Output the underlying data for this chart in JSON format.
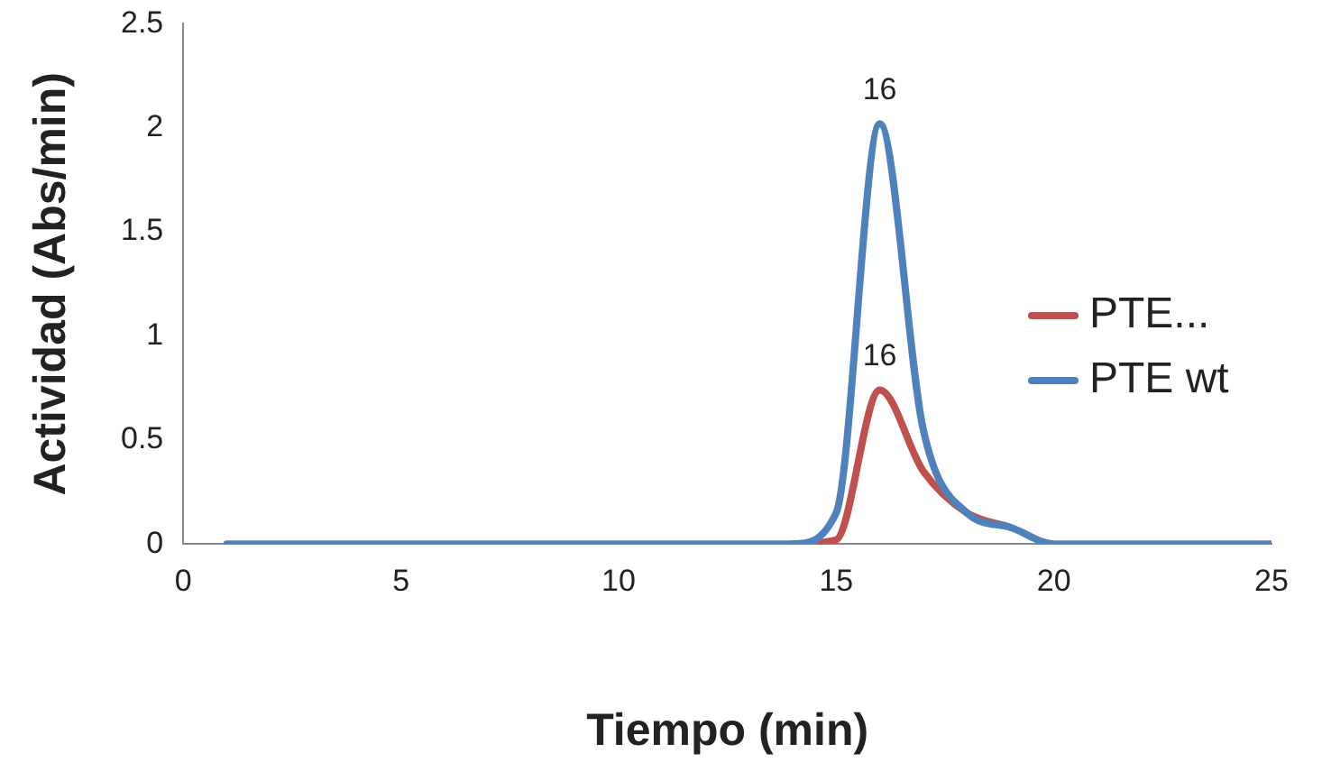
{
  "chart_data": {
    "type": "line",
    "xlabel": "Tiempo (min)",
    "ylabel": "Actividad (Abs/min)",
    "x": [
      1,
      2,
      3,
      4,
      5,
      6,
      7,
      8,
      9,
      10,
      11,
      12,
      13,
      14,
      15,
      16,
      17,
      18,
      19,
      20,
      21,
      22,
      23,
      24,
      25
    ],
    "series": [
      {
        "name": "PTE...",
        "color": "#c0504d",
        "values": [
          null,
          null,
          null,
          null,
          null,
          null,
          null,
          null,
          null,
          null,
          null,
          null,
          null,
          0,
          0.02,
          0.74,
          0.35,
          0.15,
          0.08,
          null,
          null,
          null,
          null,
          null,
          null
        ]
      },
      {
        "name": "PTE wt",
        "color": "#4f81bd",
        "values": [
          0,
          0,
          0,
          0,
          0,
          0,
          0,
          0,
          0,
          0,
          0,
          0,
          0,
          0,
          0.15,
          2.02,
          0.55,
          0.15,
          0.08,
          0,
          0,
          0,
          0,
          0,
          0
        ]
      }
    ],
    "xlim": [
      0,
      25
    ],
    "xticks": [
      0,
      5,
      10,
      15,
      20,
      25
    ],
    "ylim": [
      0,
      2.5
    ],
    "yticks": [
      0,
      0.5,
      1,
      1.5,
      2,
      2.5
    ],
    "annotations": [
      {
        "text": "16",
        "x": 16,
        "y": 0.74
      },
      {
        "text": "16",
        "x": 16,
        "y": 2.02
      }
    ],
    "grid": false,
    "legend": "right",
    "marker": "none",
    "line_style": "solid"
  }
}
